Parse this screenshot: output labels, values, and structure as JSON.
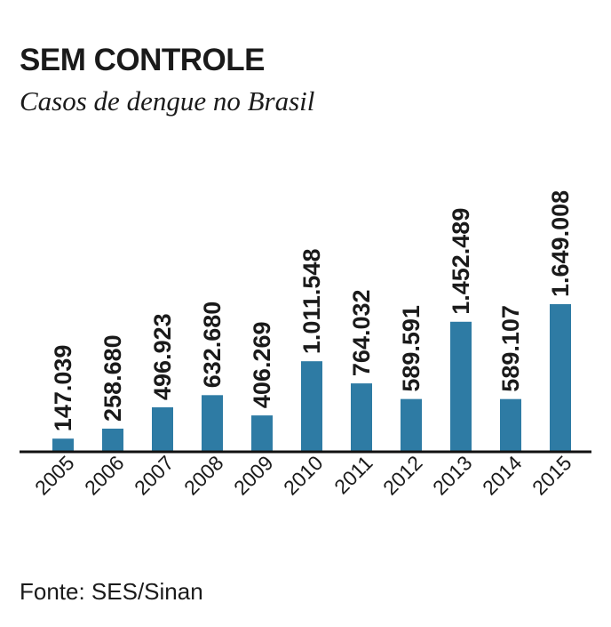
{
  "chart_data": {
    "type": "bar",
    "title": "SEM CONTROLE",
    "subtitle": "Casos de dengue no Brasil",
    "source": "Fonte: SES/Sinan",
    "categories": [
      "2005",
      "2006",
      "2007",
      "2008",
      "2009",
      "2010",
      "2011",
      "2012",
      "2013",
      "2014",
      "2015"
    ],
    "values": [
      147039,
      258680,
      496923,
      632680,
      406269,
      1011548,
      764032,
      589591,
      1452489,
      589107,
      1649008
    ],
    "value_labels": [
      "147.039",
      "258.680",
      "496.923",
      "632.680",
      "406.269",
      "1.011.548",
      "764.032",
      "589.591",
      "1.452.489",
      "589.107",
      "1.649.008"
    ],
    "xlabel": "",
    "ylabel": "",
    "ylim": [
      0,
      1649008
    ],
    "grid": false,
    "bar_color": "#2e7ba4"
  }
}
